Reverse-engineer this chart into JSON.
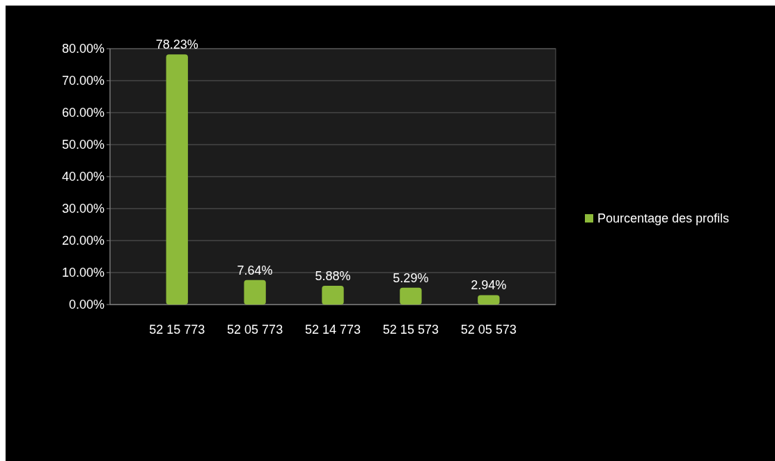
{
  "chart_data": {
    "type": "bar",
    "categories": [
      "52 15 773",
      "52 05 773",
      "52 14 773",
      "52 15 573",
      "52 05 573"
    ],
    "series": [
      {
        "name": "Pourcentage des profils",
        "color": "#8dba3a",
        "values": [
          78.23,
          7.64,
          5.88,
          5.29,
          2.94
        ]
      }
    ],
    "value_labels": [
      "78.23%",
      "7.64%",
      "5.88%",
      "5.29%",
      "2.94%"
    ],
    "ylim": [
      0,
      80
    ],
    "yticks": [
      {
        "value": 0,
        "label": "0.00%"
      },
      {
        "value": 10,
        "label": "10.00%"
      },
      {
        "value": 20,
        "label": "20.00%"
      },
      {
        "value": 30,
        "label": "30.00%"
      },
      {
        "value": 40,
        "label": "40.00%"
      },
      {
        "value": 50,
        "label": "50.00%"
      },
      {
        "value": 60,
        "label": "60.00%"
      },
      {
        "value": 70,
        "label": "70.00%"
      },
      {
        "value": 80,
        "label": "80.00%"
      }
    ],
    "grid": "y",
    "legend": "right"
  }
}
